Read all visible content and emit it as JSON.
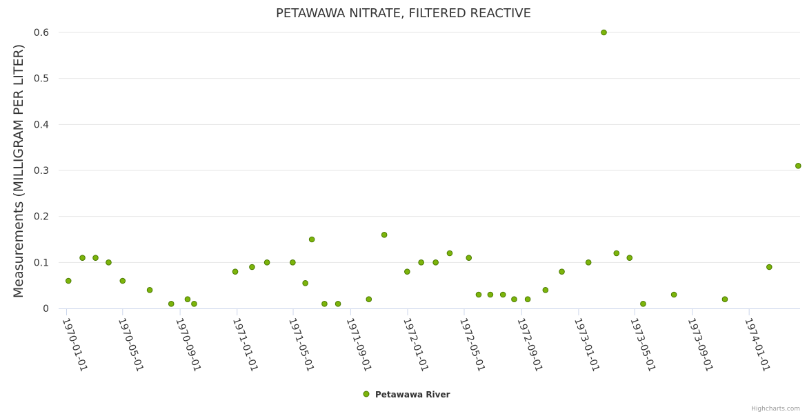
{
  "chart_data": {
    "type": "scatter",
    "title": "PETAWAWA NITRATE, FILTERED REACTIVE",
    "ylabel": "Measurements (MILLIGRAM PER LITER)",
    "xlabel": "",
    "ylim": [
      0,
      0.6
    ],
    "xlim": [
      "1969-12-15",
      "1974-04-20"
    ],
    "yticks": [
      0,
      0.1,
      0.2,
      0.3,
      0.4,
      0.5,
      0.6
    ],
    "ytick_labels": [
      "0",
      "0.1",
      "0.2",
      "0.3",
      "0.4",
      "0.5",
      "0.6"
    ],
    "xticks": [
      "1970-01-01",
      "1970-05-01",
      "1970-09-01",
      "1971-01-01",
      "1971-05-01",
      "1971-09-01",
      "1972-01-01",
      "1972-05-01",
      "1972-09-01",
      "1973-01-01",
      "1973-05-01",
      "1973-09-01",
      "1974-01-01"
    ],
    "grid": true,
    "legend_position": "bottom-center",
    "colors": {
      "marker_fill": "#7cb40b",
      "marker_stroke": "#4a7a00",
      "grid": "#e6e6e6",
      "axis": "#ccd6eb"
    },
    "series": [
      {
        "name": "Petawawa River",
        "points": [
          {
            "x": "1970-01-05",
            "y": 0.06
          },
          {
            "x": "1970-02-04",
            "y": 0.11
          },
          {
            "x": "1970-03-04",
            "y": 0.11
          },
          {
            "x": "1970-04-01",
            "y": 0.1
          },
          {
            "x": "1970-05-01",
            "y": 0.06
          },
          {
            "x": "1970-06-28",
            "y": 0.04
          },
          {
            "x": "1970-08-13",
            "y": 0.01
          },
          {
            "x": "1970-09-17",
            "y": 0.02
          },
          {
            "x": "1970-10-01",
            "y": 0.01
          },
          {
            "x": "1970-12-28",
            "y": 0.08
          },
          {
            "x": "1971-02-02",
            "y": 0.09
          },
          {
            "x": "1971-03-06",
            "y": 0.1
          },
          {
            "x": "1971-04-30",
            "y": 0.1
          },
          {
            "x": "1971-05-27",
            "y": 0.055
          },
          {
            "x": "1971-06-10",
            "y": 0.15
          },
          {
            "x": "1971-07-07",
            "y": 0.01
          },
          {
            "x": "1971-08-05",
            "y": 0.01
          },
          {
            "x": "1971-10-10",
            "y": 0.02
          },
          {
            "x": "1971-11-12",
            "y": 0.16
          },
          {
            "x": "1971-12-31",
            "y": 0.08
          },
          {
            "x": "1972-01-30",
            "y": 0.1
          },
          {
            "x": "1972-03-01",
            "y": 0.1
          },
          {
            "x": "1972-03-31",
            "y": 0.12
          },
          {
            "x": "1972-05-11",
            "y": 0.11
          },
          {
            "x": "1972-06-01",
            "y": 0.03
          },
          {
            "x": "1972-06-26",
            "y": 0.03
          },
          {
            "x": "1972-07-23",
            "y": 0.03
          },
          {
            "x": "1972-08-16",
            "y": 0.02
          },
          {
            "x": "1972-09-14",
            "y": 0.02
          },
          {
            "x": "1972-10-22",
            "y": 0.04
          },
          {
            "x": "1972-11-26",
            "y": 0.08
          },
          {
            "x": "1973-01-22",
            "y": 0.1
          },
          {
            "x": "1973-02-24",
            "y": 0.6
          },
          {
            "x": "1973-03-23",
            "y": 0.12
          },
          {
            "x": "1973-04-20",
            "y": 0.11
          },
          {
            "x": "1973-05-19",
            "y": 0.01
          },
          {
            "x": "1973-07-24",
            "y": 0.03
          },
          {
            "x": "1973-11-10",
            "y": 0.02
          },
          {
            "x": "1974-02-13",
            "y": 0.09
          },
          {
            "x": "1974-04-16",
            "y": 0.31
          }
        ]
      }
    ],
    "credits": "Highcharts.com"
  }
}
